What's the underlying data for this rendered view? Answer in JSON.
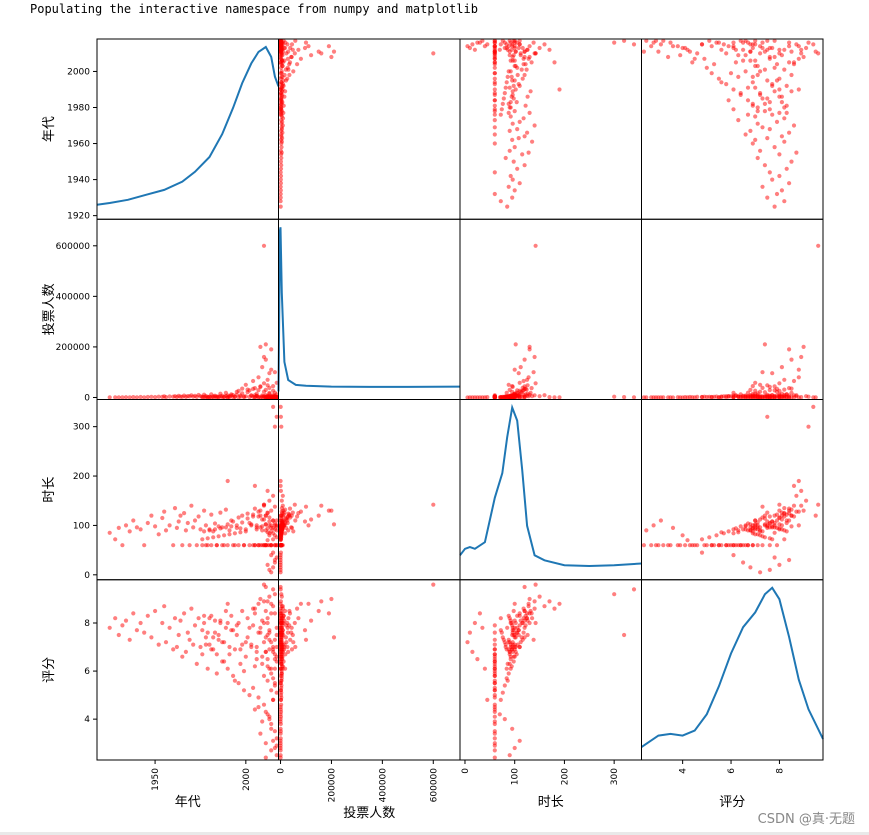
{
  "notebook": {
    "output_line": "Populating the interactive namespace from numpy and matplotlib",
    "watermark": "CSDN @真·无题"
  },
  "chart_data": {
    "type": "scatter",
    "variables": [
      "年代",
      "投票人数",
      "时长",
      "评分"
    ],
    "diagonal": "kde",
    "point_color": "#ff0000",
    "kde_color": "#1f77b4",
    "ranges": {
      "年代": [
        1918,
        2018
      ],
      "投票人数": [
        -8000,
        705000
      ],
      "时长": [
        -10,
        355
      ],
      "评分": [
        2.3,
        9.8
      ]
    },
    "axis_ticks": {
      "年代": [
        1920,
        1940,
        1960,
        1980,
        2000
      ],
      "投票人数": [
        0,
        200000,
        400000,
        600000
      ],
      "时长": [
        0,
        100,
        200,
        300
      ],
      "评分": [
        4,
        6,
        8
      ]
    },
    "bottom_ticks": {
      "年代": [
        1950,
        2000
      ],
      "投票人数": [
        0,
        200000,
        400000,
        600000
      ],
      "时长": [
        0,
        100,
        200,
        300
      ],
      "评分": [
        4,
        6,
        8
      ]
    },
    "kde_curves": {
      "年代": [
        [
          1918,
          0.04
        ],
        [
          1925,
          0.05
        ],
        [
          1935,
          0.07
        ],
        [
          1945,
          0.1
        ],
        [
          1955,
          0.13
        ],
        [
          1965,
          0.18
        ],
        [
          1972,
          0.24
        ],
        [
          1980,
          0.33
        ],
        [
          1987,
          0.47
        ],
        [
          1993,
          0.63
        ],
        [
          1998,
          0.78
        ],
        [
          2003,
          0.9
        ],
        [
          2007,
          0.97
        ],
        [
          2011,
          1.0
        ],
        [
          2014,
          0.94
        ],
        [
          2016,
          0.82
        ],
        [
          2018,
          0.76
        ]
      ],
      "投票人数": [
        [
          -8000,
          0.0
        ],
        [
          -2000,
          0.98
        ],
        [
          0,
          1.0
        ],
        [
          5000,
          0.6
        ],
        [
          15000,
          0.18
        ],
        [
          30000,
          0.07
        ],
        [
          60000,
          0.04
        ],
        [
          100000,
          0.035
        ],
        [
          200000,
          0.03
        ],
        [
          350000,
          0.028
        ],
        [
          500000,
          0.028
        ],
        [
          705000,
          0.03
        ]
      ],
      "时长": [
        [
          -10,
          0.1
        ],
        [
          0,
          0.14
        ],
        [
          10,
          0.15
        ],
        [
          20,
          0.14
        ],
        [
          40,
          0.18
        ],
        [
          60,
          0.45
        ],
        [
          75,
          0.6
        ],
        [
          85,
          0.82
        ],
        [
          95,
          1.0
        ],
        [
          105,
          0.92
        ],
        [
          115,
          0.62
        ],
        [
          125,
          0.28
        ],
        [
          140,
          0.1
        ],
        [
          160,
          0.07
        ],
        [
          200,
          0.04
        ],
        [
          250,
          0.035
        ],
        [
          300,
          0.04
        ],
        [
          355,
          0.05
        ]
      ],
      "评分": [
        [
          2.3,
          0.03
        ],
        [
          3.0,
          0.1
        ],
        [
          3.5,
          0.11
        ],
        [
          4.0,
          0.1
        ],
        [
          4.5,
          0.13
        ],
        [
          5.0,
          0.23
        ],
        [
          5.5,
          0.4
        ],
        [
          6.0,
          0.6
        ],
        [
          6.5,
          0.76
        ],
        [
          7.0,
          0.85
        ],
        [
          7.4,
          0.96
        ],
        [
          7.7,
          1.0
        ],
        [
          8.0,
          0.93
        ],
        [
          8.4,
          0.7
        ],
        [
          8.8,
          0.44
        ],
        [
          9.2,
          0.26
        ],
        [
          9.8,
          0.08
        ]
      ]
    },
    "points": [
      [
        1980,
        2000,
        92,
        7.1
      ],
      [
        1985,
        3500,
        98,
        7.5
      ],
      [
        1990,
        8000,
        102,
        8.0
      ],
      [
        1992,
        12000,
        110,
        8.3
      ],
      [
        1995,
        22000,
        95,
        7.9
      ],
      [
        1998,
        35000,
        120,
        8.5
      ],
      [
        2000,
        50000,
        88,
        7.2
      ],
      [
        2002,
        28000,
        105,
        7.8
      ],
      [
        2004,
        65000,
        118,
        8.6
      ],
      [
        2005,
        9000,
        60,
        6.2
      ],
      [
        2006,
        15000,
        100,
        7.0
      ],
      [
        2007,
        80000,
        128,
        8.8
      ],
      [
        2008,
        42000,
        96,
        7.6
      ],
      [
        2009,
        120000,
        112,
        8.1
      ],
      [
        2010,
        5000,
        60,
        5.8
      ],
      [
        2010,
        160000,
        140,
        8.9
      ],
      [
        2011,
        30000,
        90,
        6.8
      ],
      [
        2011,
        210000,
        102,
        7.4
      ],
      [
        2012,
        4000,
        60,
        6.5
      ],
      [
        2012,
        70000,
        125,
        8.2
      ],
      [
        2013,
        18000,
        84,
        6.1
      ],
      [
        2013,
        96000,
        108,
        7.7
      ],
      [
        2014,
        2000,
        60,
        5.2
      ],
      [
        2014,
        190000,
        130,
        8.4
      ],
      [
        2015,
        1500,
        45,
        4.8
      ],
      [
        2015,
        45000,
        95,
        6.9
      ],
      [
        2016,
        700,
        60,
        5.5
      ],
      [
        2016,
        100000,
        138,
        7.3
      ],
      [
        2017,
        300,
        100,
        6.6
      ],
      [
        2017,
        58000,
        110,
        7.0
      ],
      [
        1925,
        500,
        85,
        7.8
      ],
      [
        1928,
        300,
        72,
        8.2
      ],
      [
        1930,
        800,
        95,
        7.5
      ],
      [
        1932,
        450,
        60,
        7.9
      ],
      [
        1934,
        1100,
        100,
        8.1
      ],
      [
        1936,
        650,
        88,
        7.3
      ],
      [
        1938,
        1500,
        110,
        8.4
      ],
      [
        1940,
        900,
        96,
        7.7
      ],
      [
        1942,
        2000,
        92,
        8.0
      ],
      [
        1944,
        700,
        60,
        7.6
      ],
      [
        1946,
        1800,
        105,
        8.3
      ],
      [
        1948,
        2500,
        120,
        7.4
      ],
      [
        1950,
        1300,
        98,
        8.5
      ],
      [
        1952,
        3000,
        82,
        7.1
      ],
      [
        1954,
        2200,
        115,
        8.0
      ],
      [
        1955,
        4500,
        128,
        8.7
      ],
      [
        1956,
        1600,
        90,
        7.2
      ],
      [
        1958,
        3800,
        100,
        7.8
      ],
      [
        1960,
        2900,
        60,
        6.9
      ],
      [
        1961,
        5200,
        135,
        8.2
      ],
      [
        1962,
        1900,
        95,
        7.0
      ],
      [
        1963,
        6100,
        108,
        7.5
      ],
      [
        1964,
        3300,
        120,
        8.1
      ],
      [
        1965,
        2600,
        60,
        6.6
      ],
      [
        1966,
        7400,
        125,
        8.4
      ],
      [
        1967,
        2100,
        90,
        6.8
      ],
      [
        1968,
        5600,
        105,
        7.6
      ],
      [
        1969,
        4100,
        60,
        7.3
      ],
      [
        1970,
        8800,
        140,
        8.6
      ],
      [
        1971,
        3000,
        96,
        7.1
      ],
      [
        1972,
        6500,
        110,
        7.9
      ],
      [
        1973,
        2400,
        60,
        6.3
      ],
      [
        1974,
        9700,
        118,
        8.2
      ],
      [
        1975,
        4800,
        92,
        7.0
      ],
      [
        1976,
        3200,
        60,
        6.7
      ],
      [
        1977,
        11000,
        130,
        8.0
      ],
      [
        1978,
        5500,
        100,
        7.4
      ],
      [
        1979,
        2800,
        60,
        6.1
      ],
      [
        1981,
        12500,
        122,
        8.3
      ],
      [
        1982,
        4300,
        88,
        6.9
      ],
      [
        1983,
        7100,
        104,
        7.6
      ],
      [
        1984,
        3700,
        60,
        5.9
      ],
      [
        1986,
        15000,
        126,
        8.1
      ],
      [
        1987,
        6200,
        96,
        7.2
      ],
      [
        1988,
        2900,
        60,
        6.4
      ],
      [
        1989,
        18000,
        132,
        8.5
      ],
      [
        1991,
        5100,
        90,
        6.7
      ],
      [
        1993,
        9400,
        108,
        7.7
      ],
      [
        1994,
        3600,
        60,
        5.6
      ],
      [
        1996,
        26000,
        116,
        8.0
      ],
      [
        1997,
        7700,
        94,
        6.9
      ],
      [
        1999,
        4200,
        60,
        6.0
      ],
      [
        2001,
        31000,
        124,
        8.2
      ],
      [
        2003,
        8300,
        100,
        7.1
      ],
      [
        2004,
        2700,
        60,
        5.3
      ],
      [
        2005,
        37000,
        134,
        8.4
      ],
      [
        2006,
        6600,
        92,
        6.5
      ],
      [
        2007,
        3100,
        60,
        4.9
      ],
      [
        2008,
        44000,
        120,
        7.8
      ],
      [
        2009,
        7900,
        98,
        6.6
      ],
      [
        2010,
        2300,
        60,
        4.6
      ],
      [
        2010,
        56000,
        142,
        8.0
      ],
      [
        2011,
        9100,
        102,
        6.8
      ],
      [
        2011,
        1900,
        60,
        4.3
      ],
      [
        2012,
        48000,
        126,
        7.5
      ],
      [
        2012,
        6800,
        94,
        6.2
      ],
      [
        2013,
        1400,
        60,
        4.1
      ],
      [
        2013,
        38000,
        116,
        7.3
      ],
      [
        2014,
        5400,
        88,
        5.9
      ],
      [
        2014,
        1100,
        60,
        3.8
      ],
      [
        2015,
        27000,
        110,
        7.0
      ],
      [
        2015,
        4400,
        84,
        5.7
      ],
      [
        2016,
        900,
        60,
        3.5
      ],
      [
        2016,
        19000,
        104,
        6.7
      ],
      [
        2016,
        3300,
        80,
        5.4
      ],
      [
        2017,
        600,
        60,
        3.2
      ],
      [
        2017,
        12000,
        98,
        6.4
      ],
      [
        2017,
        2500,
        76,
        5.1
      ],
      [
        2017,
        400,
        60,
        2.9
      ],
      [
        2016,
        8000,
        92,
        6.1
      ],
      [
        2015,
        1700,
        72,
        4.8
      ],
      [
        2014,
        250,
        60,
        2.7
      ],
      [
        2013,
        14000,
        100,
        6.9
      ],
      [
        2012,
        2100,
        86,
        5.6
      ],
      [
        2011,
        160,
        60,
        3.0
      ],
      [
        2010,
        23000,
        112,
        7.2
      ],
      [
        2009,
        3900,
        90,
        6.3
      ],
      [
        2008,
        120,
        60,
        3.4
      ],
      [
        2007,
        29000,
        118,
        7.6
      ],
      [
        2006,
        5800,
        96,
        6.8
      ],
      [
        2005,
        1200,
        60,
        4.4
      ],
      [
        2004,
        34000,
        122,
        7.9
      ],
      [
        2003,
        7300,
        102,
        7.0
      ],
      [
        2002,
        1800,
        60,
        5.0
      ],
      [
        2001,
        21000,
        114,
        7.4
      ],
      [
        2000,
        4600,
        92,
        6.6
      ],
      [
        1999,
        950,
        60,
        5.2
      ],
      [
        1998,
        16000,
        106,
        7.1
      ],
      [
        1997,
        3400,
        86,
        6.3
      ],
      [
        1996,
        700,
        60,
        5.5
      ],
      [
        1995,
        11000,
        100,
        7.5
      ],
      [
        1994,
        2600,
        84,
        6.9
      ],
      [
        1993,
        600,
        60,
        5.8
      ],
      [
        1992,
        7800,
        98,
        7.7
      ],
      [
        1991,
        2000,
        82,
        7.0
      ],
      [
        1990,
        500,
        60,
        6.1
      ],
      [
        1989,
        5900,
        96,
        7.8
      ],
      [
        1988,
        1500,
        80,
        7.2
      ],
      [
        1987,
        420,
        60,
        6.4
      ],
      [
        1986,
        4700,
        94,
        8.0
      ],
      [
        1985,
        1300,
        78,
        7.3
      ],
      [
        1984,
        380,
        60,
        6.7
      ],
      [
        1983,
        3600,
        92,
        8.1
      ],
      [
        1982,
        1000,
        76,
        7.4
      ],
      [
        1981,
        330,
        60,
        6.9
      ],
      [
        1980,
        2900,
        90,
        8.2
      ],
      [
        1979,
        850,
        74,
        7.6
      ],
      [
        1978,
        290,
        60,
        7.1
      ],
      [
        1977,
        2200,
        88,
        8.3
      ],
      [
        1976,
        720,
        72,
        7.7
      ],
      [
        2012,
        140,
        20,
        8.0
      ],
      [
        2013,
        180,
        10,
        7.6
      ],
      [
        2014,
        95,
        5,
        7.2
      ],
      [
        2015,
        160,
        15,
        6.8
      ],
      [
        2016,
        210,
        25,
        6.5
      ],
      [
        2017,
        130,
        35,
        7.8
      ],
      [
        2014,
        260,
        40,
        6.1
      ],
      [
        2016,
        300,
        30,
        8.4
      ],
      [
        2011,
        110,
        120,
        9.5
      ],
      [
        2013,
        5000,
        150,
        9.1
      ],
      [
        2015,
        9000,
        160,
        8.7
      ],
      [
        2010,
        600000,
        142,
        9.6
      ],
      [
        2017,
        1500,
        320,
        7.5
      ],
      [
        2015,
        800,
        340,
        9.4
      ],
      [
        2016,
        3000,
        300,
        9.2
      ],
      [
        1990,
        200,
        190,
        8.8
      ],
      [
        2005,
        400,
        180,
        8.6
      ],
      [
        2012,
        1500,
        170,
        8.9
      ],
      [
        2008,
        200000,
        130,
        9.0
      ],
      [
        2011,
        150000,
        120,
        8.5
      ],
      [
        2014,
        110000,
        100,
        8.8
      ],
      [
        2017,
        180,
        90,
        2.5
      ],
      [
        2016,
        240,
        100,
        2.8
      ],
      [
        2015,
        320,
        110,
        3.1
      ],
      [
        2014,
        90,
        95,
        3.6
      ],
      [
        2013,
        70,
        80,
        4.0
      ],
      [
        2012,
        120,
        70,
        4.2
      ],
      [
        2011,
        220,
        60,
        2.4
      ],
      [
        2009,
        380,
        60,
        3.9
      ],
      [
        2007,
        520,
        60,
        4.5
      ]
    ]
  }
}
